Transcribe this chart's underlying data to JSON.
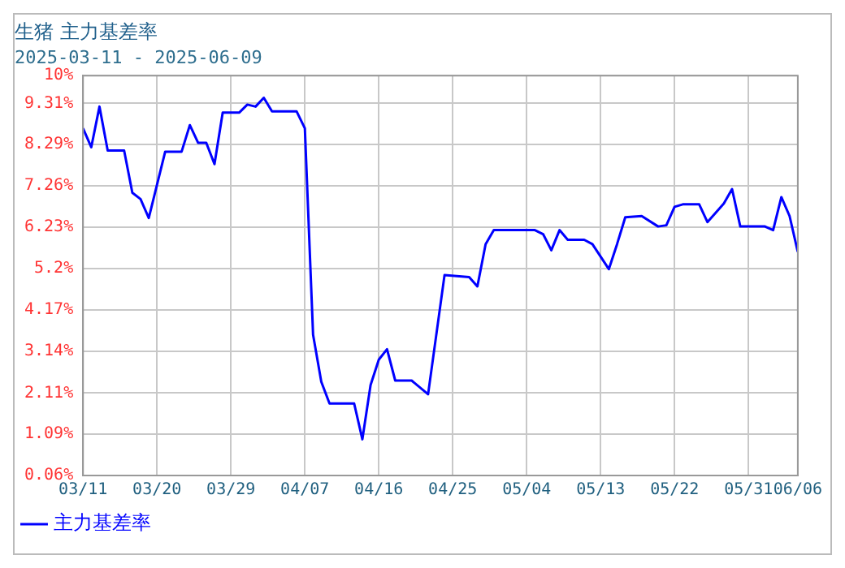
{
  "chart_data": {
    "type": "line",
    "title": "生猪 主力基差率",
    "subtitle": "2025-03-11 - 2025-06-09",
    "x": [
      "2025-03-11",
      "2025-03-12",
      "2025-03-13",
      "2025-03-14",
      "2025-03-16",
      "2025-03-17",
      "2025-03-18",
      "2025-03-19",
      "2025-03-21",
      "2025-03-23",
      "2025-03-24",
      "2025-03-25",
      "2025-03-26",
      "2025-03-27",
      "2025-03-28",
      "2025-03-30",
      "2025-03-31",
      "2025-04-01",
      "2025-04-02",
      "2025-04-03",
      "2025-04-06",
      "2025-04-07",
      "2025-04-08",
      "2025-04-09",
      "2025-04-10",
      "2025-04-13",
      "2025-04-14",
      "2025-04-15",
      "2025-04-16",
      "2025-04-17",
      "2025-04-18",
      "2025-04-20",
      "2025-04-22",
      "2025-04-24",
      "2025-04-27",
      "2025-04-28",
      "2025-04-29",
      "2025-04-30",
      "2025-05-05",
      "2025-05-06",
      "2025-05-07",
      "2025-05-08",
      "2025-05-09",
      "2025-05-11",
      "2025-05-12",
      "2025-05-14",
      "2025-05-15",
      "2025-05-16",
      "2025-05-18",
      "2025-05-20",
      "2025-05-21",
      "2025-05-22",
      "2025-05-23",
      "2025-05-25",
      "2025-05-26",
      "2025-05-28",
      "2025-05-29",
      "2025-05-30",
      "2025-06-02",
      "2025-06-03",
      "2025-06-04",
      "2025-06-05",
      "2025-06-06"
    ],
    "series": [
      {
        "name": "主力基差率",
        "color": "#0000ff",
        "values": [
          8.69,
          8.22,
          9.23,
          8.14,
          8.14,
          7.09,
          6.93,
          6.46,
          8.11,
          8.11,
          8.77,
          8.33,
          8.33,
          7.8,
          9.08,
          9.08,
          9.28,
          9.23,
          9.45,
          9.11,
          9.11,
          8.69,
          3.56,
          2.39,
          1.85,
          1.85,
          0.96,
          2.31,
          2.94,
          3.2,
          2.42,
          2.42,
          2.08,
          5.04,
          4.99,
          4.76,
          5.81,
          6.16,
          6.16,
          6.06,
          5.66,
          6.16,
          5.92,
          5.92,
          5.81,
          5.19,
          5.81,
          6.48,
          6.51,
          6.25,
          6.28,
          6.74,
          6.8,
          6.8,
          6.36,
          6.82,
          7.18,
          6.25,
          6.25,
          6.16,
          6.98,
          6.51,
          5.62
        ]
      }
    ],
    "xlim": [
      "2025-03-11",
      "2025-06-06"
    ],
    "xticks": [
      {
        "value": "2025-03-11",
        "label": "03/11"
      },
      {
        "value": "2025-03-20",
        "label": "03/20"
      },
      {
        "value": "2025-03-29",
        "label": "03/29"
      },
      {
        "value": "2025-04-07",
        "label": "04/07"
      },
      {
        "value": "2025-04-16",
        "label": "04/16"
      },
      {
        "value": "2025-04-25",
        "label": "04/25"
      },
      {
        "value": "2025-05-04",
        "label": "05/04"
      },
      {
        "value": "2025-05-13",
        "label": "05/13"
      },
      {
        "value": "2025-05-22",
        "label": "05/22"
      },
      {
        "value": "2025-05-31",
        "label": "05/31"
      },
      {
        "value": "2025-06-06",
        "label": "06/06"
      }
    ],
    "ylim": [
      0.06,
      10
    ],
    "yticks": [
      {
        "value": 0.06,
        "label": "0.06%"
      },
      {
        "value": 1.09,
        "label": "1.09%"
      },
      {
        "value": 2.11,
        "label": "2.11%"
      },
      {
        "value": 3.14,
        "label": "3.14%"
      },
      {
        "value": 4.17,
        "label": "4.17%"
      },
      {
        "value": 5.2,
        "label": "5.2%"
      },
      {
        "value": 6.23,
        "label": "6.23%"
      },
      {
        "value": 7.26,
        "label": "7.26%"
      },
      {
        "value": 8.29,
        "label": "8.29%"
      },
      {
        "value": 9.31,
        "label": "9.31%"
      },
      {
        "value": 10,
        "label": "10%"
      }
    ],
    "grid": true,
    "legend": "bottom left",
    "marker": "none",
    "line_style": "solid"
  }
}
